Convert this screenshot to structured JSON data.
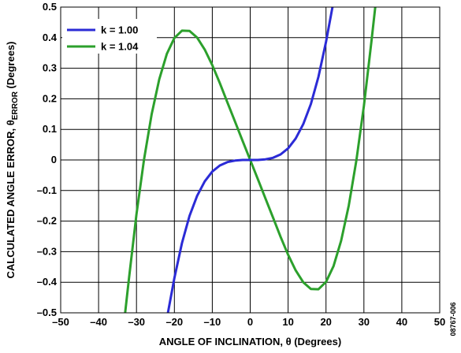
{
  "chart_data": {
    "type": "line",
    "xlabel": "ANGLE OF INCLINATION, θ (Degrees)",
    "ylabel_main": "CALCULATED ANGLE ERROR, θ",
    "ylabel_sub": "ERROR",
    "ylabel_tail": " (Degrees)",
    "xlim": [
      -50,
      50
    ],
    "ylim": [
      -0.5,
      0.5
    ],
    "x_ticks": [
      -50,
      -40,
      -30,
      -20,
      -10,
      0,
      10,
      20,
      30,
      40,
      50
    ],
    "y_ticks": [
      -0.5,
      -0.4,
      -0.3,
      -0.2,
      -0.1,
      0,
      0.1,
      0.2,
      0.3,
      0.4,
      0.5
    ],
    "x_tick_labels": [
      "–50",
      "–40",
      "–30",
      "–20",
      "–10",
      "0",
      "10",
      "20",
      "30",
      "40",
      "50"
    ],
    "y_tick_labels": [
      "–0.5",
      "–0.4",
      "–0.3",
      "–0.2",
      "–0.1",
      "0",
      "0.1",
      "0.2",
      "0.3",
      "0.4",
      "0.5"
    ],
    "grid": true,
    "legend_position": "top-left",
    "series": [
      {
        "name": "k = 1.00",
        "color": "#2b2bd6",
        "x": [
          -21.7,
          -20,
          -18,
          -16,
          -14,
          -12,
          -10,
          -8,
          -6,
          -4,
          -2,
          0,
          2,
          4,
          6,
          8,
          10,
          12,
          14,
          16,
          18,
          20,
          21.7
        ],
        "y": [
          -0.5,
          -0.386,
          -0.272,
          -0.183,
          -0.117,
          -0.07,
          -0.038,
          -0.018,
          -0.007,
          -0.002,
          0.0,
          0.0,
          0.0,
          0.002,
          0.007,
          0.018,
          0.038,
          0.07,
          0.117,
          0.183,
          0.272,
          0.386,
          0.5
        ]
      },
      {
        "name": "k = 1.04",
        "color": "#2ca02c",
        "x": [
          -33.0,
          -32,
          -30,
          -28,
          -26,
          -24,
          -22,
          -20,
          -18,
          -16,
          -14,
          -12,
          -10,
          -8,
          -6,
          -4,
          -2,
          0,
          2,
          4,
          6,
          8,
          10,
          12,
          14,
          16,
          18,
          20,
          22,
          24,
          26,
          28,
          30,
          32,
          33.0
        ],
        "y": [
          -0.5,
          -0.389,
          -0.177,
          0.002,
          0.149,
          0.264,
          0.347,
          0.399,
          0.423,
          0.422,
          0.4,
          0.361,
          0.31,
          0.251,
          0.188,
          0.125,
          0.062,
          0.0,
          -0.062,
          -0.125,
          -0.188,
          -0.251,
          -0.31,
          -0.361,
          -0.4,
          -0.422,
          -0.423,
          -0.399,
          -0.347,
          -0.264,
          -0.149,
          -0.002,
          0.177,
          0.389,
          0.5
        ]
      }
    ],
    "side_label": "08767-006"
  }
}
